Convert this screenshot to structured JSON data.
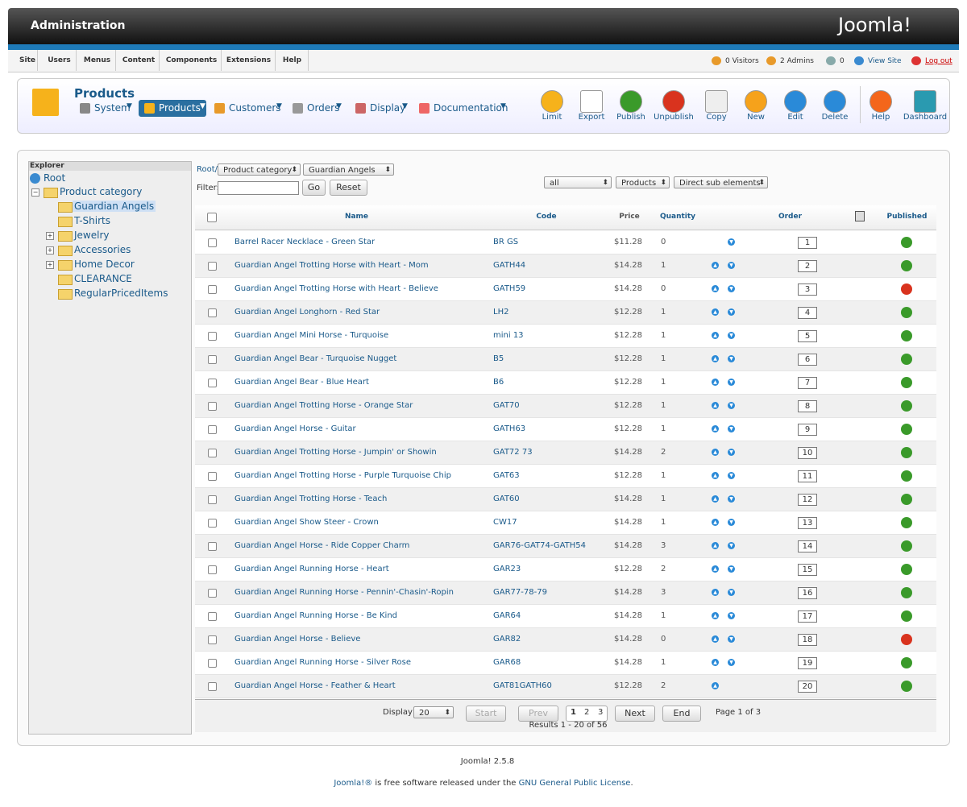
{
  "header": {
    "title": "Administration",
    "logo": "Joomla!"
  },
  "menu": [
    "Site",
    "Users",
    "Menus",
    "Content",
    "Components",
    "Extensions",
    "Help"
  ],
  "status": [
    "0 Visitors",
    "2 Admins",
    "0",
    "View Site",
    "Log out"
  ],
  "toolbar": {
    "title": "Products",
    "nav": [
      "System",
      "Products",
      "Customers",
      "Orders",
      "Display",
      "Documentation"
    ],
    "buttons": [
      "Limit",
      "Export",
      "Publish",
      "Unpublish",
      "Copy",
      "New",
      "Edit",
      "Delete",
      "Help",
      "Dashboard"
    ]
  },
  "explorer": {
    "title": "Explorer",
    "root": "Root",
    "category": "Product category",
    "children": [
      "Guardian Angels",
      "T-Shirts",
      "Jewelry",
      "Accessories",
      "Home Decor",
      "CLEARANCE",
      "RegularPricedItems"
    ]
  },
  "filters": {
    "path": "Root/",
    "type": "Product category",
    "category": "Guardian Angels",
    "label": "Filter:",
    "go": "Go",
    "reset": "Reset",
    "state": "all",
    "scope": "Products",
    "depth": "Direct sub elements"
  },
  "table": {
    "headers": [
      "Name",
      "Code",
      "Price",
      "Quantity",
      "Order",
      "Published"
    ],
    "rows": [
      {
        "name": "Barrel Racer Necklace - Green Star",
        "code": "BR GS",
        "price": "$11.28",
        "quantity": 0,
        "order": 1,
        "published": true
      },
      {
        "name": "Guardian Angel Trotting Horse with Heart - Mom",
        "code": "GATH44",
        "price": "$14.28",
        "quantity": 1,
        "order": 2,
        "published": true
      },
      {
        "name": "Guardian Angel Trotting Horse with Heart - Believe",
        "code": "GATH59",
        "price": "$14.28",
        "quantity": 0,
        "order": 3,
        "published": false
      },
      {
        "name": "Guardian Angel Longhorn - Red Star",
        "code": "LH2",
        "price": "$12.28",
        "quantity": 1,
        "order": 4,
        "published": true
      },
      {
        "name": "Guardian Angel Mini Horse - Turquoise",
        "code": "mini 13",
        "price": "$12.28",
        "quantity": 1,
        "order": 5,
        "published": true
      },
      {
        "name": "Guardian Angel Bear - Turquoise Nugget",
        "code": "B5",
        "price": "$12.28",
        "quantity": 1,
        "order": 6,
        "published": true
      },
      {
        "name": "Guardian Angel Bear - Blue Heart",
        "code": "B6",
        "price": "$12.28",
        "quantity": 1,
        "order": 7,
        "published": true
      },
      {
        "name": "Guardian Angel Trotting Horse - Orange Star",
        "code": "GAT70",
        "price": "$12.28",
        "quantity": 1,
        "order": 8,
        "published": true
      },
      {
        "name": "Guardian Angel Horse - Guitar",
        "code": "GATH63",
        "price": "$12.28",
        "quantity": 1,
        "order": 9,
        "published": true
      },
      {
        "name": "Guardian Angel Trotting Horse - Jumpin' or Showin",
        "code": "GAT72 73",
        "price": "$14.28",
        "quantity": 2,
        "order": 10,
        "published": true
      },
      {
        "name": "Guardian Angel Trotting Horse - Purple Turquoise Chip",
        "code": "GAT63",
        "price": "$12.28",
        "quantity": 1,
        "order": 11,
        "published": true
      },
      {
        "name": "Guardian Angel Trotting Horse - Teach",
        "code": "GAT60",
        "price": "$14.28",
        "quantity": 1,
        "order": 12,
        "published": true
      },
      {
        "name": "Guardian Angel Show Steer - Crown",
        "code": "CW17",
        "price": "$14.28",
        "quantity": 1,
        "order": 13,
        "published": true
      },
      {
        "name": "Guardian Angel Horse - Ride Copper Charm",
        "code": "GAR76-GAT74-GATH54",
        "price": "$14.28",
        "quantity": 3,
        "order": 14,
        "published": true
      },
      {
        "name": "Guardian Angel Running Horse - Heart",
        "code": "GAR23",
        "price": "$12.28",
        "quantity": 2,
        "order": 15,
        "published": true
      },
      {
        "name": "Guardian Angel Running Horse - Pennin'-Chasin'-Ropin",
        "code": "GAR77-78-79",
        "price": "$14.28",
        "quantity": 3,
        "order": 16,
        "published": true
      },
      {
        "name": "Guardian Angel Running Horse - Be Kind",
        "code": "GAR64",
        "price": "$14.28",
        "quantity": 1,
        "order": 17,
        "published": true
      },
      {
        "name": "Guardian Angel Horse - Believe",
        "code": "GAR82",
        "price": "$14.28",
        "quantity": 0,
        "order": 18,
        "published": false
      },
      {
        "name": "Guardian Angel Running Horse - Silver Rose",
        "code": "GAR68",
        "price": "$14.28",
        "quantity": 1,
        "order": 19,
        "published": true
      },
      {
        "name": "Guardian Angel Horse - Feather & Heart",
        "code": "GAT81GATH60",
        "price": "$12.28",
        "quantity": 2,
        "order": 20,
        "published": true
      }
    ]
  },
  "pagination": {
    "display": "Display #",
    "limit": "20",
    "start": "Start",
    "prev": "Prev",
    "pages": [
      "1",
      "2",
      "3"
    ],
    "next": "Next",
    "end": "End",
    "page": "Page 1 of 3",
    "results": "Results 1 - 20 of 56"
  },
  "footer": {
    "version": "Joomla! 2.5.8",
    "license": [
      "Joomla!®",
      "is free software released under the",
      "GNU General Public License",
      "."
    ]
  }
}
